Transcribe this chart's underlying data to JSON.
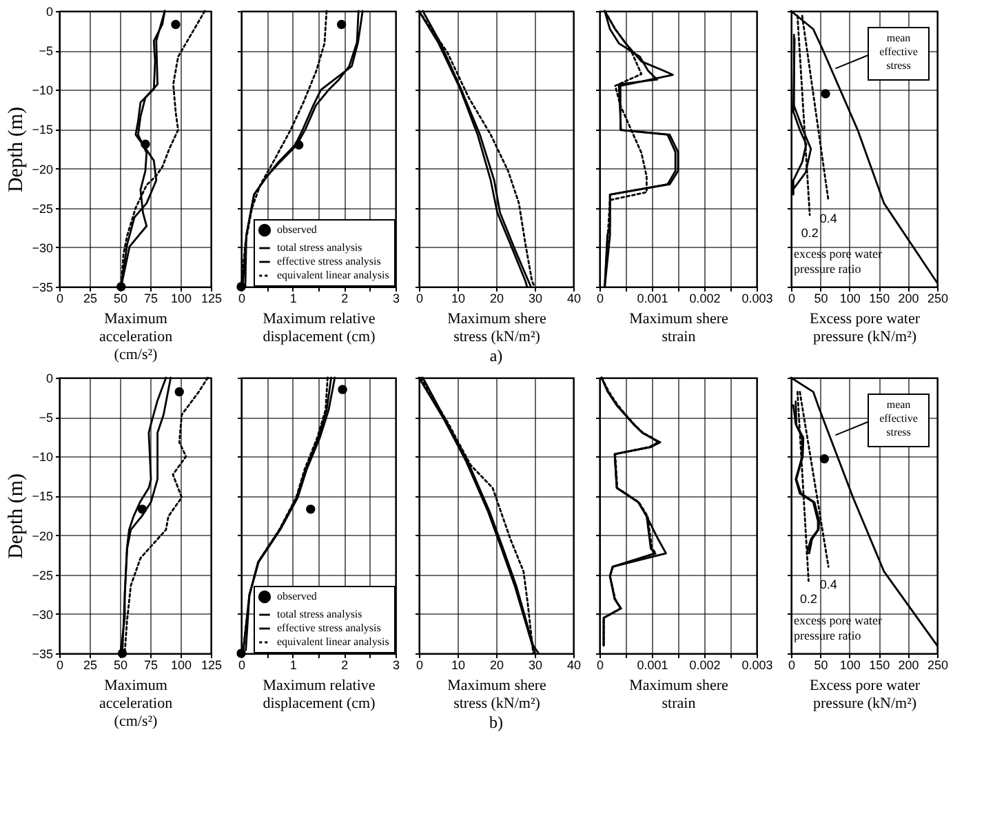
{
  "chart_data": [
    {
      "type": "line",
      "xlabel": "Maximum acceleration (cm/s²)",
      "ylabel": "Depth (m)",
      "xlim": [
        0,
        125
      ],
      "xticks": [
        0,
        25,
        50,
        75,
        100,
        125
      ],
      "ylim": [
        -35,
        0
      ],
      "yticks": [
        0,
        -5,
        -10,
        -15,
        -20,
        -25,
        -30,
        -35
      ],
      "grid": true,
      "series": [
        {
          "type": "scatter",
          "marker": "circle",
          "color": "#000000",
          "x": [
            96,
            71,
            51
          ],
          "values": [
            -1.7,
            -16.9,
            -35
          ]
        },
        {
          "type": "line",
          "line_style": "solid",
          "color": "#000000",
          "x": [
            87,
            80,
            81,
            71,
            67,
            65,
            72,
            71,
            67,
            69,
            72,
            58,
            51
          ],
          "values": [
            0,
            -3.8,
            -9.3,
            -11,
            -13.4,
            -15.7,
            -18,
            -20.3,
            -22.7,
            -25.6,
            -27.3,
            -29.9,
            -35
          ]
        },
        {
          "type": "line",
          "line_style": "solid",
          "color": "#000000",
          "x": [
            87,
            85,
            78,
            79,
            78,
            67,
            65,
            63,
            71,
            78,
            80,
            72,
            62,
            56,
            51
          ],
          "values": [
            0,
            -1.7,
            -3.8,
            -6.4,
            -9.9,
            -11.6,
            -14,
            -15.7,
            -17.4,
            -19,
            -21.5,
            -24.4,
            -26.2,
            -29.6,
            -35
          ]
        },
        {
          "type": "line",
          "line_style": "dotted",
          "color": "#000000",
          "x": [
            120,
            109,
            98,
            94,
            96,
            98,
            91,
            85,
            80,
            72,
            63,
            56,
            53,
            51
          ],
          "values": [
            0,
            -2.9,
            -5.8,
            -9.3,
            -12.8,
            -15.1,
            -17.4,
            -19.8,
            -20.9,
            -22.1,
            -25,
            -28.5,
            -30.8,
            -35
          ]
        }
      ]
    },
    {
      "type": "line",
      "xlabel": "Maximum relative displacement (cm)",
      "xlim": [
        0,
        3
      ],
      "xticks": [
        0,
        {
          "value": 0.5,
          "label": null
        },
        1,
        {
          "value": 1.5,
          "label": null
        },
        2,
        {
          "value": 2.5,
          "label": null
        },
        3
      ],
      "ylim": [
        -35,
        0
      ],
      "yticks": [
        0,
        -5,
        -10,
        -15,
        -20,
        -25,
        -30,
        -35
      ],
      "grid": true,
      "tick_labels": "x",
      "legend": "bottom right",
      "series": [
        {
          "name": "observed",
          "type": "scatter",
          "marker": "circle",
          "color": "#000000",
          "x": [
            1.95,
            1.12,
            0
          ],
          "values": [
            -1.7,
            -17,
            -35
          ]
        },
        {
          "name": "total stress analysis",
          "line_style": "solid",
          "color": "#000000",
          "x": [
            2.36,
            2.27,
            2.15,
            1.85,
            1.55,
            1.4,
            1.2,
            1.05,
            0.72,
            0.5,
            0.25,
            0.1,
            0.08
          ],
          "values": [
            0,
            -4,
            -7,
            -8.5,
            -10,
            -12,
            -15,
            -17,
            -19.2,
            -21,
            -23.3,
            -28.5,
            -35
          ]
        },
        {
          "name": "effective stress analysis",
          "line_style": "solid",
          "color": "#000000",
          "x": [
            2.28,
            2.25,
            2.1,
            1.9,
            1.7,
            1.45,
            1.25,
            1.08,
            0.75,
            0.5,
            0.25,
            0.1,
            0.03
          ],
          "values": [
            0,
            -4,
            -7,
            -8.7,
            -10,
            -12,
            -15,
            -17,
            -19.2,
            -21,
            -23.3,
            -28.5,
            -35
          ]
        },
        {
          "name": "equivalent linear analysis",
          "type": "line",
          "line_style": "dotted",
          "color": "#000000",
          "x": [
            1.66,
            1.62,
            1.46,
            1.21,
            0.96,
            0.62,
            0.37,
            0.21,
            0.08,
            0
          ],
          "values": [
            0,
            -4.1,
            -7.6,
            -11.6,
            -15.1,
            -19.2,
            -22.1,
            -25,
            -29.6,
            -35
          ]
        }
      ]
    },
    {
      "type": "line",
      "title": "a)",
      "xlabel": "Maximum shere stress (kN/m²)",
      "xlim": [
        0,
        40
      ],
      "xticks": [
        0,
        10,
        20,
        30,
        40
      ],
      "ylim": [
        -35,
        0
      ],
      "yticks": [
        0,
        -5,
        -10,
        -15,
        -20,
        -25,
        -30,
        -35
      ],
      "grid": true,
      "tick_labels": "x",
      "series": [
        {
          "line_style": "solid",
          "color": "#000000",
          "x": [
            1,
            5.5,
            11,
            15.8,
            19.5,
            21,
            24.8,
            29
          ],
          "values": [
            0,
            -4,
            -10,
            -15.7,
            -21.5,
            -25.6,
            -30.2,
            -35
          ]
        },
        {
          "type": "line",
          "line_style": "solid",
          "color": "#000000",
          "x": [
            0,
            5.1,
            10.7,
            15.2,
            18.6,
            20.3,
            24.2,
            27.6,
            28
          ],
          "values": [
            0,
            -4.1,
            -9.9,
            -15.7,
            -21.5,
            -25.6,
            -30.2,
            -34.3,
            -35
          ]
        },
        {
          "type": "line",
          "line_style": "dotted",
          "color": "#000000",
          "x": [
            0,
            7.3,
            12.9,
            18.6,
            23.1,
            25.9,
            27.6,
            29.3,
            30
          ],
          "values": [
            0,
            -5.2,
            -11,
            -15.7,
            -20.3,
            -24.4,
            -29.6,
            -34.3,
            -35
          ]
        }
      ]
    },
    {
      "type": "line",
      "xlabel": "Maximum shere strain",
      "xlim": [
        0,
        0.003
      ],
      "xticks": [
        0,
        {
          "value": 0.0005,
          "label": null
        },
        0.001,
        {
          "value": 0.0015,
          "label": null
        },
        0.002,
        {
          "value": 0.0025,
          "label": null
        },
        0.003
      ],
      "ylim": [
        -35,
        0
      ],
      "yticks": [
        0,
        -5,
        -10,
        -15,
        -20,
        -25,
        -30,
        -35
      ],
      "grid": true,
      "tick_labels": "x",
      "series": [
        {
          "type": "line",
          "line_style": "solid",
          "color": "#000000",
          "x": [
            0.0001,
            0.0003,
            0.0005,
            0.0008,
            0.0012,
            0.0014,
            0.0004,
            0.0004,
            0.0013,
            0.00145,
            0.00145,
            0.0013,
            0.0002,
            0.0002,
            0.0001
          ],
          "values": [
            0,
            -2.3,
            -4.1,
            -6.4,
            -7.5,
            -8.1,
            -9.5,
            -15.1,
            -15.7,
            -17.9,
            -20.3,
            -22,
            -23.3,
            -28.5,
            -35
          ]
        },
        {
          "type": "line",
          "line_style": "solid",
          "color": "#000000",
          "x": [
            0.0001,
            0.0002,
            0.00037,
            0.00077,
            0.00093,
            0.0011,
            0.00037,
            0.00041,
            0.00134,
            0.0015,
            0.0015,
            0.00134,
            0.0002,
            0.0002,
            0.00015,
            0.0001
          ],
          "values": [
            0,
            -2.3,
            -4.1,
            -5.8,
            -7.6,
            -8.7,
            -9.3,
            -15.1,
            -15.7,
            -17.9,
            -20.3,
            -22,
            -23.3,
            -27.3,
            -28.5,
            -35
          ]
        },
        {
          "type": "line",
          "line_style": "dotted",
          "color": "#000000",
          "x": [
            0.0001,
            0.0003,
            0.0006,
            0.0008,
            0.0003,
            0.0004,
            0.0006,
            0.0008,
            0.0009,
            0.0009,
            0.0002,
            0.0001
          ],
          "values": [
            0,
            -2.3,
            -5,
            -8,
            -9.5,
            -12,
            -15,
            -18,
            -21,
            -23,
            -24,
            -35
          ]
        }
      ]
    },
    {
      "type": "line",
      "xlabel": "Excess pore water pressure (kN/m²)",
      "xlim": [
        0,
        250
      ],
      "xticks": [
        0,
        50,
        100,
        150,
        200,
        250
      ],
      "ylim": [
        -35,
        0
      ],
      "yticks": [
        0,
        -5,
        -10,
        -15,
        -20,
        -25,
        -30,
        -35
      ],
      "grid": true,
      "tick_labels": "x",
      "annotations": [
        {
          "text": "mean effective stress",
          "x": 76,
          "y": -7.3
        },
        "excess pore water pressure ratio"
      ],
      "series": [
        {
          "type": "scatter",
          "marker": "circle",
          "color": "#000000",
          "x": [
            59
          ],
          "values": [
            -10.5
          ]
        },
        {
          "type": "line",
          "line_style": "solid",
          "color": "#000000",
          "x": [
            5,
            5,
            20,
            34,
            25,
            5
          ],
          "values": [
            -3,
            -12,
            -15,
            -17.5,
            -20.5,
            -22.5
          ]
        },
        {
          "type": "line",
          "line_style": "solid",
          "color": "#000000",
          "x": [
            6,
            4,
            15,
            26,
            19,
            4,
            4
          ],
          "values": [
            -3.5,
            -12.8,
            -15.1,
            -16.9,
            -19.2,
            -21.5,
            -23.3
          ]
        },
        {
          "type": "line",
          "line_style": "solid",
          "color": "#000000",
          "x": [
            0,
            38,
            53,
            114,
            159,
            250
          ],
          "values": [
            0,
            -2.3,
            -4.7,
            -15.1,
            -24.4,
            -34.5
          ]
        },
        {
          "name": "0.2",
          "type": "line",
          "line_style": "dotted",
          "color": "#000000",
          "x": [
            11,
            32
          ],
          "values": [
            -0.6,
            -25.9
          ]
        },
        {
          "name": "0.4",
          "type": "line",
          "line_style": "dotted",
          "color": "#000000",
          "x": [
            19,
            64
          ],
          "values": [
            -0.6,
            -24.1
          ]
        }
      ]
    },
    {
      "type": "line",
      "xlabel": "Maximum acceleration (cm/s²)",
      "ylabel": "Depth (m)",
      "xlim": [
        0,
        125
      ],
      "xticks": [
        0,
        25,
        50,
        75,
        100,
        125
      ],
      "ylim": [
        -35,
        0
      ],
      "yticks": [
        0,
        -5,
        -10,
        -15,
        -20,
        -25,
        -30,
        -35
      ],
      "grid": true,
      "series": [
        {
          "type": "scatter",
          "marker": "circle",
          "color": "#000000",
          "x": [
            99,
            68.4,
            52
          ],
          "values": [
            -1.8,
            -16.7,
            -35
          ]
        },
        {
          "type": "line",
          "line_style": "solid",
          "color": "#000000",
          "x": [
            91.9,
            86,
            81,
            81,
            75.6,
            68,
            59,
            56,
            54,
            52
          ],
          "values": [
            0,
            -4.7,
            -7,
            -12.9,
            -15.8,
            -17.6,
            -19.3,
            -21.7,
            -27.6,
            -35
          ]
        },
        {
          "type": "line",
          "line_style": "solid",
          "color": "#000000",
          "x": [
            88,
            81,
            75.6,
            73.8,
            75.6,
            73.8,
            66.6,
            61.3,
            57.6,
            55.8,
            54,
            54,
            50.4
          ],
          "values": [
            0,
            -2.9,
            -5.9,
            -7,
            -12.9,
            -14,
            -15.8,
            -17.6,
            -19.3,
            -21.7,
            -27.6,
            -30.5,
            -35
          ]
        },
        {
          "type": "line",
          "line_style": "dotted",
          "color": "#000000",
          "x": [
            122.5,
            115,
            101,
            99,
            104.5,
            93.7,
            101,
            90,
            88,
            67,
            59,
            55.8,
            54
          ],
          "values": [
            0,
            -1.8,
            -4.7,
            -8.2,
            -10,
            -12.3,
            -15.2,
            -17.6,
            -19.3,
            -22.9,
            -26.4,
            -31,
            -35
          ]
        }
      ]
    },
    {
      "type": "line",
      "xlabel": "Maximum relative displacement (cm)",
      "xlim": [
        0,
        3
      ],
      "xticks": [
        0,
        {
          "value": 0.5,
          "label": null
        },
        1,
        {
          "value": 1.5,
          "label": null
        },
        2,
        {
          "value": 2.5,
          "label": null
        },
        3
      ],
      "ylim": [
        -35,
        0
      ],
      "yticks": [
        0,
        -5,
        -10,
        -15,
        -20,
        -25,
        -30,
        -35
      ],
      "grid": true,
      "tick_labels": "x",
      "legend": "bottom right",
      "series": [
        {
          "name": "observed",
          "type": "scatter",
          "marker": "circle",
          "color": "#000000",
          "x": [
            1.97,
            1.35,
            0
          ],
          "values": [
            -1.5,
            -16.7,
            -35
          ]
        },
        {
          "name": "total stress analysis",
          "line_style": "solid",
          "color": "#000000",
          "x": [
            1.82,
            1.7,
            1.53,
            1.27,
            1.1,
            0.76,
            0.34,
            0.16,
            0.09
          ],
          "values": [
            0,
            -4.1,
            -7.6,
            -11.7,
            -15.2,
            -19.3,
            -23.4,
            -27.6,
            -34.6
          ]
        },
        {
          "name": "effective stress analysis",
          "type": "line",
          "line_style": "solid",
          "color": "#000000",
          "x": [
            1.75,
            1.66,
            1.5,
            1.25,
            1.08,
            0.75,
            0.33,
            0.16,
            0.04
          ],
          "values": [
            0,
            -4.1,
            -7.6,
            -11.7,
            -15.2,
            -19.3,
            -23.4,
            -27.6,
            -34.6
          ]
        },
        {
          "name": "equivalent linear analysis",
          "type": "line",
          "line_style": "dotted",
          "color": "#000000",
          "x": [
            1.68,
            1.64,
            1.48,
            1.23,
            1.07,
            0.74,
            0.33,
            0.16,
            0.04
          ],
          "values": [
            0,
            -4.1,
            -7.6,
            -11.7,
            -15.2,
            -19.3,
            -23.4,
            -27.6,
            -34.6
          ]
        }
      ]
    },
    {
      "type": "line",
      "title": "b)",
      "xlabel": "Maximum shere stress (kN/m²)",
      "xlim": [
        0,
        40
      ],
      "xticks": [
        0,
        10,
        20,
        30,
        40
      ],
      "ylim": [
        -35,
        0
      ],
      "yticks": [
        0,
        -5,
        -10,
        -15,
        -20,
        -25,
        -30,
        -35
      ],
      "grid": true,
      "tick_labels": "x",
      "series": [
        {
          "line_style": "solid",
          "color": "#000000",
          "x": [
            1,
            6.8,
            12.6,
            18.3,
            21.8,
            25.2,
            29.6,
            31
          ],
          "values": [
            0,
            -5.3,
            -10.6,
            -17,
            -21.7,
            -26.4,
            -34,
            -35
          ]
        },
        {
          "type": "line",
          "line_style": "solid",
          "color": "#000000",
          "x": [
            0,
            6.5,
            12.2,
            17.9,
            21.4,
            24.8,
            29.4,
            30
          ],
          "values": [
            0,
            -5.3,
            -10.6,
            -17,
            -21.7,
            -26.4,
            -34,
            -35
          ]
        },
        {
          "type": "line",
          "line_style": "dotted",
          "color": "#000000",
          "x": [
            0.5,
            7.7,
            13.4,
            19.1,
            23.7,
            27.1,
            28.2,
            29.4,
            29.6
          ],
          "values": [
            0,
            -5.9,
            -11.1,
            -14,
            -20.5,
            -24.6,
            -28.7,
            -34,
            -35
          ]
        }
      ]
    },
    {
      "type": "line",
      "xlabel": "Maximum shere strain",
      "xlim": [
        0,
        0.003
      ],
      "xticks": [
        0,
        {
          "value": 0.0005,
          "label": null
        },
        0.001,
        {
          "value": 0.0015,
          "label": null
        },
        0.002,
        {
          "value": 0.0025,
          "label": null
        },
        0.003
      ],
      "ylim": [
        -35,
        0
      ],
      "yticks": [
        0,
        -5,
        -10,
        -15,
        -20,
        -25,
        -30,
        -35
      ],
      "grid": true,
      "tick_labels": "x",
      "series": [
        {
          "type": "line",
          "line_style": "solid",
          "color": "#000000",
          "x": [
            4e-05,
            0.00016,
            0.00033,
            0.00049,
            0.00065,
            0.00082,
            0.00098,
            0.00116,
            0.00098,
            0.00029,
            0.00033,
            0.00049,
            0.00074,
            0.0009,
            0.00112,
            0.00127,
            0.00025,
            0.0002,
            0.00029,
            0.00041,
            8e-05,
            8e-05
          ],
          "values": [
            0,
            -1.8,
            -3.5,
            -4.7,
            -5.9,
            -7,
            -7.6,
            -8.2,
            -8.8,
            -9.7,
            -14,
            -14.7,
            -15.8,
            -17.6,
            -20.5,
            -22.3,
            -24,
            -25.2,
            -28.1,
            -29.3,
            -30.5,
            -34
          ]
        },
        {
          "type": "line",
          "line_style": "solid",
          "color": "#000000",
          "x": [
            4e-05,
            0.00016,
            0.00033,
            0.00049,
            0.00065,
            0.00082,
            0.00098,
            0.00114,
            0.00098,
            0.00029,
            0.00033,
            0.00049,
            0.00074,
            0.0009,
            0.00098,
            0.00106,
            0.00025,
            0.0002,
            0.00029,
            0.00041,
            8e-05,
            8e-05
          ],
          "values": [
            0,
            -1.8,
            -3.5,
            -4.7,
            -5.9,
            -7,
            -7.6,
            -8.2,
            -8.8,
            -9.7,
            -14,
            -14.7,
            -15.8,
            -17.6,
            -21.7,
            -22.3,
            -24,
            -25.2,
            -28.1,
            -29.3,
            -30.5,
            -34
          ]
        },
        {
          "type": "line",
          "line_style": "dotted",
          "color": "#000000",
          "x": [
            4e-05,
            0.00018,
            0.00035,
            0.0005,
            0.00066,
            0.00083,
            0.001,
            0.00112,
            0.00095,
            0.0003,
            0.00034,
            0.0005,
            0.00075,
            0.00092,
            0.001,
            0.00108,
            0.00026,
            0.0002,
            0.0003,
            0.0004,
            8e-05,
            8e-05
          ],
          "values": [
            0,
            -1.8,
            -3.5,
            -4.7,
            -5.9,
            -7,
            -7.6,
            -8.2,
            -8.8,
            -9.7,
            -14,
            -14.7,
            -15.8,
            -17.6,
            -21.7,
            -22.3,
            -24,
            -25.2,
            -28.1,
            -29.3,
            -30.5,
            -34
          ]
        }
      ]
    },
    {
      "type": "line",
      "xlabel": "Excess pore water pressure (kN/m²)",
      "xlim": [
        0,
        250
      ],
      "xticks": [
        0,
        50,
        100,
        150,
        200,
        250
      ],
      "ylim": [
        -35,
        0
      ],
      "yticks": [
        0,
        -5,
        -10,
        -15,
        -20,
        -25,
        -30,
        -35
      ],
      "grid": true,
      "tick_labels": "x",
      "annotations": [
        {
          "text": "mean effective stress",
          "x": 76,
          "y": -7.3
        },
        "excess pore water pressure ratio"
      ],
      "series": [
        {
          "type": "scatter",
          "marker": "circle",
          "color": "#000000",
          "x": [
            57
          ],
          "values": [
            -10.3
          ]
        },
        {
          "line_style": "solid",
          "color": "#000000",
          "x": [
            8,
            9,
            21,
            20,
            9,
            17,
            40,
            48,
            47,
            36,
            31
          ],
          "values": [
            -3,
            -6,
            -7.6,
            -10,
            -12.9,
            -14.7,
            -15.8,
            -18.2,
            -19.3,
            -20.5,
            -22.3
          ]
        },
        {
          "type": "line",
          "line_style": "solid",
          "color": "#000000",
          "x": [
            4,
            8,
            19,
            19,
            8,
            15,
            38,
            46,
            46,
            34,
            27
          ],
          "values": [
            -3.5,
            -5.9,
            -7.6,
            -10,
            -12.9,
            -14.7,
            -15.8,
            -18.2,
            -19.3,
            -20.5,
            -22.3
          ]
        },
        {
          "type": "line",
          "line_style": "solid",
          "color": "#000000",
          "x": [
            0,
            38,
            49,
            106,
            159,
            250
          ],
          "values": [
            0,
            -1.8,
            -4.1,
            -15.2,
            -24.6,
            -34
          ]
        },
        {
          "name": "0.2",
          "type": "line",
          "line_style": "dotted",
          "color": "#000000",
          "x": [
            11,
            30
          ],
          "values": [
            -1.8,
            -25.8
          ]
        },
        {
          "name": "0.4",
          "type": "line",
          "line_style": "dotted",
          "color": "#000000",
          "x": [
            15,
            64
          ],
          "values": [
            -1.8,
            -24
          ]
        }
      ]
    }
  ]
}
